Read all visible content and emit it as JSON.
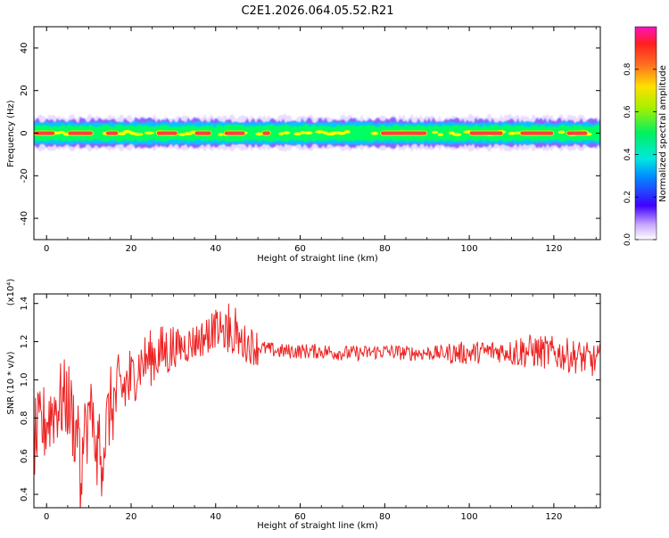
{
  "page_title": "C2E1.2026.064.05.52.R21",
  "chart_data": [
    {
      "type": "heatmap",
      "xlabel": "Height of straight line (km)",
      "ylabel": "Frequency (Hz)",
      "xlim": [
        -3,
        131
      ],
      "ylim": [
        -50,
        50
      ],
      "x_ticks": [
        0,
        20,
        40,
        60,
        80,
        100,
        120
      ],
      "y_ticks": [
        40,
        20,
        0,
        -20,
        -40
      ],
      "colorbar": {
        "label": "Normalized spectral amplitude",
        "ticks": [
          0.0,
          0.2,
          0.4,
          0.6,
          0.8
        ],
        "range": [
          0,
          1
        ]
      },
      "band_center_hz": 0,
      "band_halfwidth_hz": [
        1.5,
        2.5,
        3.5,
        5,
        6
      ],
      "band_colors": [
        "#ff4040",
        "#ffff00",
        "#00ff60",
        "#00c8ff",
        "#4000ff"
      ],
      "strong_segments_km": [
        [
          -3,
          2
        ],
        [
          5,
          11
        ],
        [
          14,
          17
        ],
        [
          26,
          31
        ],
        [
          35,
          39
        ],
        [
          42,
          47
        ],
        [
          51,
          53
        ],
        [
          79,
          90
        ],
        [
          100,
          108
        ],
        [
          112,
          120
        ],
        [
          123,
          128
        ]
      ]
    },
    {
      "type": "line",
      "xlabel": "Height of straight line (km)",
      "ylabel": "SNR (10 * v/v)",
      "y_multiplier": "(x10⁴)",
      "xlim": [
        -3,
        131
      ],
      "ylim": [
        0.33,
        1.45
      ],
      "x_ticks": [
        0,
        20,
        40,
        60,
        80,
        100,
        120
      ],
      "y_ticks": [
        0.4,
        0.6,
        0.8,
        1.0,
        1.2,
        1.4
      ],
      "line_color": "#ee2222",
      "series": [
        {
          "x": [
            -3,
            -1,
            1,
            3,
            5,
            7,
            8,
            9,
            10,
            11,
            12,
            13,
            15,
            18,
            20,
            22,
            25,
            28,
            31,
            34,
            37,
            40,
            43,
            46,
            50,
            55,
            60,
            65,
            70,
            75,
            80,
            85,
            90,
            95,
            100,
            105,
            110,
            115,
            120,
            123,
            126,
            129,
            131
          ],
          "values": [
            0.68,
            0.75,
            0.83,
            0.88,
            0.9,
            0.72,
            0.55,
            0.7,
            0.82,
            0.78,
            0.65,
            0.6,
            0.85,
            0.95,
            1.0,
            1.08,
            1.12,
            1.15,
            1.17,
            1.19,
            1.22,
            1.27,
            1.24,
            1.2,
            1.17,
            1.15,
            1.15,
            1.15,
            1.14,
            1.14,
            1.15,
            1.14,
            1.14,
            1.14,
            1.14,
            1.15,
            1.15,
            1.15,
            1.14,
            1.13,
            1.12,
            1.1,
            1.1
          ]
        }
      ]
    }
  ]
}
